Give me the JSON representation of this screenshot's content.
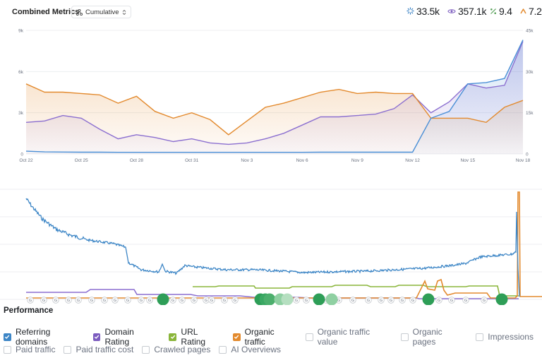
{
  "header": {
    "title": "Combined Metrics",
    "dropdown_label": "Cumulative",
    "metrics": [
      {
        "icon": "referring-domains-icon",
        "value": "33.5k",
        "color": "#3b82c4"
      },
      {
        "icon": "eye-icon",
        "value": "357.1k",
        "color": "#7c5cbf"
      },
      {
        "icon": "percent-icon",
        "value": "9.4",
        "color": "#58a05a"
      },
      {
        "icon": "domain-rating-icon",
        "value": "7.2",
        "color": "#e38a2e"
      }
    ]
  },
  "chart_data": [
    {
      "type": "area",
      "x": [
        "Oct 22",
        "Oct 23",
        "Oct 24",
        "Oct 25",
        "Oct 26",
        "Oct 27",
        "Oct 28",
        "Oct 29",
        "Oct 30",
        "Oct 31",
        "Nov 1",
        "Nov 2",
        "Nov 3",
        "Nov 4",
        "Nov 5",
        "Nov 6",
        "Nov 7",
        "Nov 8",
        "Nov 9",
        "Nov 10",
        "Nov 11",
        "Nov 12",
        "Nov 13",
        "Nov 14",
        "Nov 15",
        "Nov 16",
        "Nov 17",
        "Nov 18"
      ],
      "x_tick_labels": [
        "Oct 22",
        "Oct 25",
        "Oct 28",
        "Oct 31",
        "Nov 3",
        "Nov 6",
        "Nov 9",
        "Nov 12",
        "Nov 15",
        "Nov 18"
      ],
      "y_left_ticks": [
        "0",
        "3k",
        "6k",
        "9k"
      ],
      "y_right_ticks": [
        "0",
        "15k",
        "30k",
        "45k"
      ],
      "ylim_left": [
        0,
        9000
      ],
      "ylim_right": [
        0,
        45000
      ],
      "series": [
        {
          "color": "#e38a2e",
          "axis": "left",
          "values": [
            5100,
            4500,
            4500,
            4400,
            4300,
            3700,
            4200,
            3100,
            2600,
            3000,
            2500,
            1400,
            2400,
            3400,
            3700,
            4100,
            4500,
            4700,
            4400,
            4500,
            4400,
            4400,
            2600,
            2600,
            2600,
            2300,
            3400,
            3900
          ]
        },
        {
          "color": "#8b6fd0",
          "axis": "left",
          "values": [
            2300,
            2400,
            2800,
            2600,
            1800,
            1100,
            1400,
            1200,
            900,
            1100,
            800,
            700,
            800,
            1100,
            1500,
            2100,
            2700,
            2700,
            2800,
            2900,
            3300,
            4300,
            3000,
            3800,
            5100,
            4800,
            5000,
            8200
          ]
        },
        {
          "color": "#4a8fd6",
          "axis": "right",
          "values": [
            1000,
            750,
            700,
            650,
            650,
            600,
            600,
            600,
            600,
            600,
            600,
            600,
            600,
            600,
            600,
            600,
            650,
            650,
            650,
            650,
            650,
            650,
            13000,
            15500,
            25500,
            26000,
            27500,
            41500
          ]
        }
      ]
    },
    {
      "type": "line",
      "annotation_marker_label": "G",
      "series": [
        {
          "color": "#3d86c6"
        },
        {
          "color": "#8b6fd0"
        },
        {
          "color": "#8ab53a"
        },
        {
          "color": "#e38a2e"
        }
      ]
    }
  ],
  "performance": {
    "title": "Performance",
    "checkboxes_row1": [
      {
        "label": "Referring domains",
        "checked": true,
        "color": "#3d86c6"
      },
      {
        "label": "Domain Rating",
        "checked": true,
        "color": "#7c5cbf"
      },
      {
        "label": "URL Rating",
        "checked": true,
        "color": "#8ab53a"
      },
      {
        "label": "Organic traffic",
        "checked": true,
        "color": "#e38a2e"
      },
      {
        "label": "Organic traffic value",
        "checked": false
      },
      {
        "label": "Organic pages",
        "checked": false
      },
      {
        "label": "Impressions",
        "checked": false
      }
    ],
    "checkboxes_row2": [
      {
        "label": "Paid traffic",
        "checked": false
      },
      {
        "label": "Paid traffic cost",
        "checked": false
      },
      {
        "label": "Crawled pages",
        "checked": false
      },
      {
        "label": "AI Overviews",
        "checked": false
      }
    ]
  }
}
